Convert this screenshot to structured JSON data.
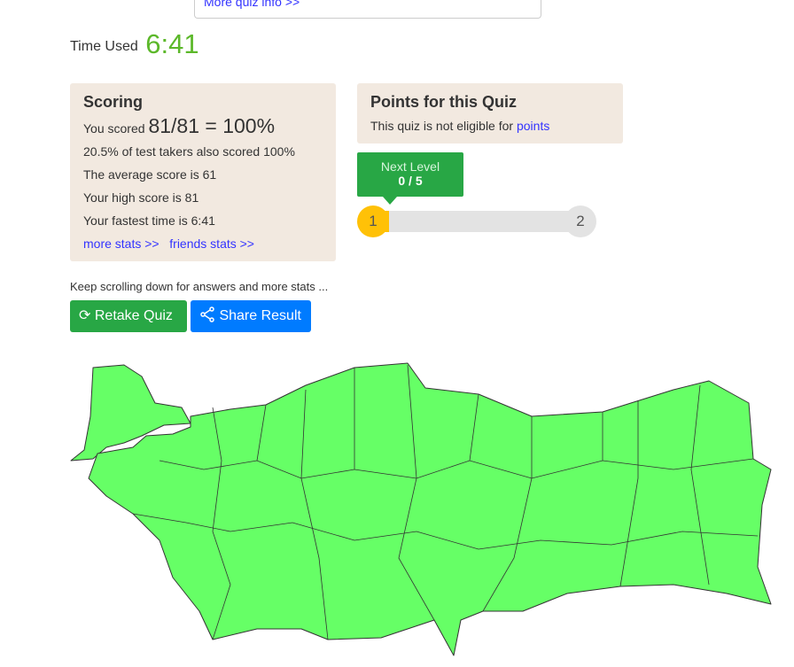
{
  "quiz_info_link": "More quiz info >>",
  "time": {
    "label": "Time Used",
    "value": "6:41"
  },
  "scoring": {
    "title": "Scoring",
    "you_scored_label": "You scored",
    "score": "81/81 = 100%",
    "lines": [
      "20.5% of test takers also scored 100%",
      "The average score is 61",
      "Your high score is 81",
      "Your fastest time is 6:41"
    ],
    "more_stats": "more stats >>",
    "friends_stats": "friends stats >>"
  },
  "points": {
    "title": "Points for this Quiz",
    "text": "This quiz is not eligible for",
    "link": "points"
  },
  "level": {
    "label": "Next Level",
    "value": "0 / 5",
    "current": "1",
    "next": "2",
    "progress": 0
  },
  "keep_scrolling": "Keep scrolling down for answers and more stats ...",
  "buttons": {
    "retake": "Retake Quiz",
    "share": "Share Result"
  },
  "map": {
    "fill": "#66ff66",
    "stroke": "#333333"
  }
}
